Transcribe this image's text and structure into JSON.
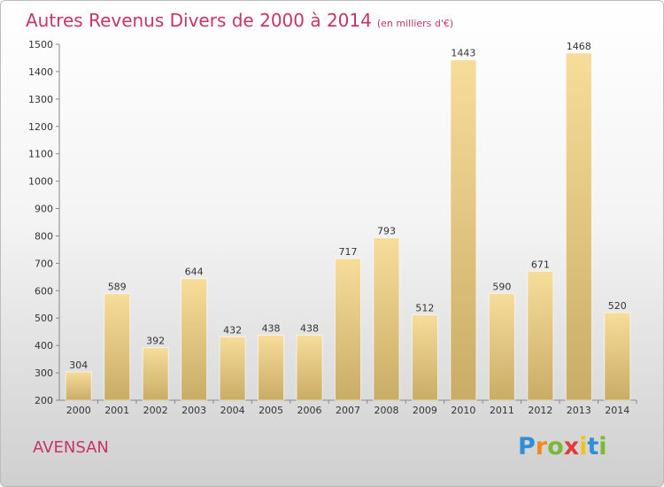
{
  "header": {
    "title": "Autres Revenus Divers de 2000 à 2014",
    "unit": "(en milliers d'€)"
  },
  "footer": {
    "commune": "AVENSAN",
    "logo_text": "Proxiti"
  },
  "colors": {
    "title": "#c8336a",
    "bar_light": "#f7dd9a",
    "bar_dark": "#c9ad66",
    "axis": "#888888"
  },
  "chart_data": {
    "type": "bar",
    "title": "Autres Revenus Divers de 2000 à 2014",
    "categories": [
      "2000",
      "2001",
      "2002",
      "2003",
      "2004",
      "2005",
      "2006",
      "2007",
      "2008",
      "2009",
      "2010",
      "2011",
      "2012",
      "2013",
      "2014"
    ],
    "values": [
      304,
      589,
      392,
      644,
      432,
      438,
      438,
      717,
      793,
      512,
      1443,
      590,
      671,
      1468,
      520
    ],
    "ylim": [
      200,
      1500
    ],
    "yticks": [
      200,
      300,
      400,
      500,
      600,
      700,
      800,
      900,
      1000,
      1100,
      1200,
      1300,
      1400,
      1500
    ],
    "grid": false,
    "data_labels": true
  }
}
